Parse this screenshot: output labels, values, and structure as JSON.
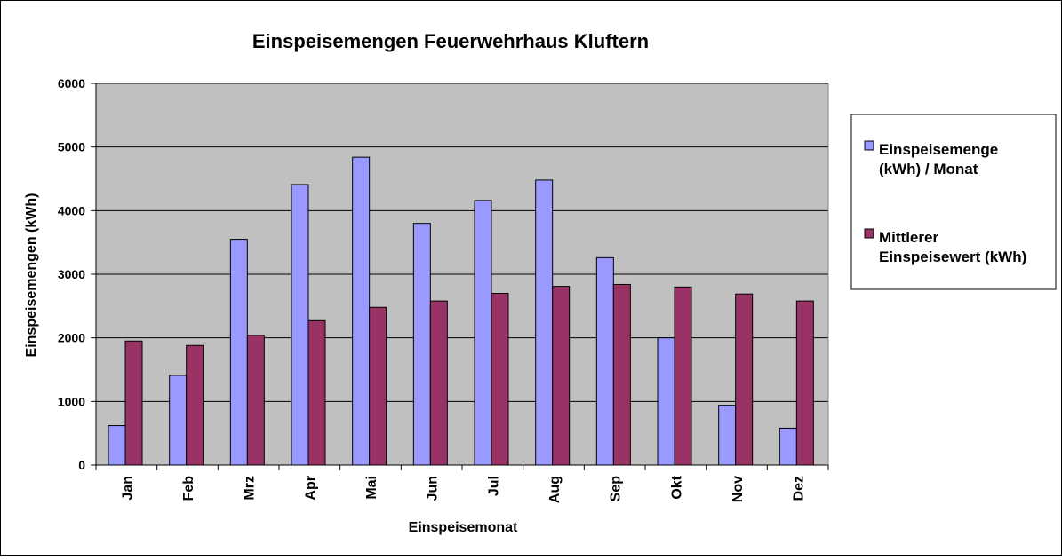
{
  "chart_data": {
    "type": "bar",
    "title": "Einspeisemengen Feuerwehrhaus Kluftern",
    "xlabel": "Einspeisemonat",
    "ylabel": "Einspeisemengen (kWh)",
    "ylim": [
      0,
      6000
    ],
    "yticks": [
      "0",
      "1000",
      "2000",
      "3000",
      "4000",
      "5000",
      "6000"
    ],
    "grid": true,
    "legend_position": "right",
    "categories": [
      "Jan",
      "Feb",
      "Mrz",
      "Apr",
      "Mai",
      "Jun",
      "Jul",
      "Aug",
      "Sep",
      "Okt",
      "Nov",
      "Dez"
    ],
    "series": [
      {
        "name": "Einspeisemenge (kWh) / Monat",
        "legend_lines": [
          "Einspeisemenge",
          "(kWh) / Monat"
        ],
        "color": "#9999ff",
        "values": [
          620,
          1410,
          3550,
          4410,
          4840,
          3800,
          4160,
          4480,
          3260,
          2000,
          940,
          580
        ]
      },
      {
        "name": "Mittlerer Einspeisewert (kWh)",
        "legend_lines": [
          "Mittlerer",
          "Einspeisewert (kWh)"
        ],
        "color": "#993366",
        "values": [
          1950,
          1880,
          2040,
          2270,
          2480,
          2580,
          2700,
          2810,
          2840,
          2800,
          2690,
          2580
        ]
      }
    ],
    "plot_background": "#c0c0c0"
  }
}
